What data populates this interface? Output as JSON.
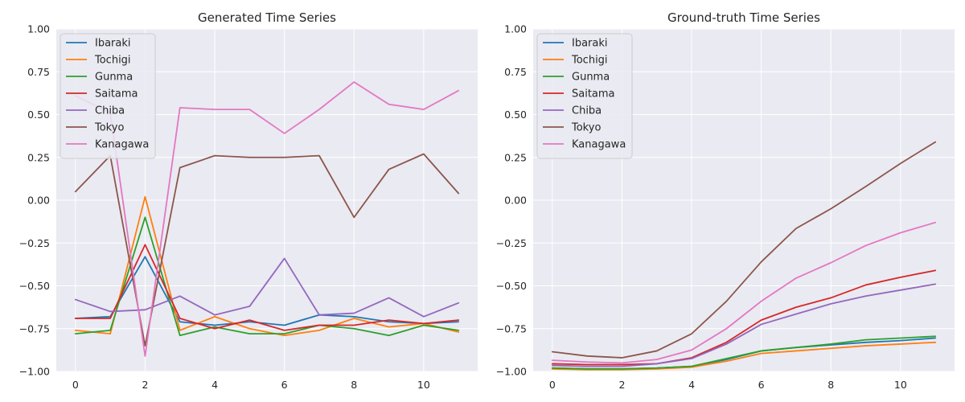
{
  "chart_data": [
    {
      "type": "line",
      "title": "Generated Time Series",
      "xlabel": "",
      "ylabel": "",
      "x": [
        0,
        1,
        2,
        3,
        4,
        5,
        6,
        7,
        8,
        9,
        10,
        11
      ],
      "xlim": [
        -0.55,
        11.55
      ],
      "ylim": [
        -1.0,
        1.0
      ],
      "xticks": [
        0,
        2,
        4,
        6,
        8,
        10
      ],
      "yticks": [
        -1.0,
        -0.75,
        -0.5,
        -0.25,
        0.0,
        0.25,
        0.5,
        0.75,
        1.0
      ],
      "ytick_labels": [
        "−1.00",
        "−0.75",
        "−0.50",
        "−0.25",
        "0.00",
        "0.25",
        "0.50",
        "0.75",
        "1.00"
      ],
      "grid": true,
      "legend_position": "upper-left",
      "series": [
        {
          "name": "Ibaraki",
          "color": "#1f77b4",
          "values": [
            -0.69,
            -0.68,
            -0.33,
            -0.71,
            -0.73,
            -0.71,
            -0.73,
            -0.67,
            -0.68,
            -0.71,
            -0.72,
            -0.71
          ]
        },
        {
          "name": "Tochigi",
          "color": "#ff7f0e",
          "values": [
            -0.76,
            -0.78,
            0.02,
            -0.76,
            -0.68,
            -0.75,
            -0.79,
            -0.76,
            -0.69,
            -0.74,
            -0.72,
            -0.77
          ]
        },
        {
          "name": "Gunma",
          "color": "#2ca02c",
          "values": [
            -0.78,
            -0.76,
            -0.1,
            -0.79,
            -0.74,
            -0.78,
            -0.78,
            -0.73,
            -0.75,
            -0.79,
            -0.73,
            -0.76
          ]
        },
        {
          "name": "Saitama",
          "color": "#d62728",
          "values": [
            -0.69,
            -0.69,
            -0.26,
            -0.69,
            -0.75,
            -0.7,
            -0.76,
            -0.73,
            -0.73,
            -0.7,
            -0.72,
            -0.7
          ]
        },
        {
          "name": "Chiba",
          "color": "#9467bd",
          "values": [
            -0.58,
            -0.65,
            -0.64,
            -0.56,
            -0.67,
            -0.62,
            -0.34,
            -0.67,
            -0.66,
            -0.57,
            -0.68,
            -0.6
          ]
        },
        {
          "name": "Tokyo",
          "color": "#8c564b",
          "values": [
            0.05,
            0.26,
            -0.85,
            0.19,
            0.26,
            0.25,
            0.25,
            0.26,
            -0.1,
            0.18,
            0.27,
            0.04
          ]
        },
        {
          "name": "Kanagawa",
          "color": "#e377c2",
          "values": [
            0.61,
            0.51,
            -0.91,
            0.54,
            0.53,
            0.53,
            0.39,
            0.53,
            0.69,
            0.56,
            0.53,
            0.64
          ]
        }
      ]
    },
    {
      "type": "line",
      "title": "Ground-truth Time Series",
      "xlabel": "",
      "ylabel": "",
      "x": [
        0,
        1,
        2,
        3,
        4,
        5,
        6,
        7,
        8,
        9,
        10,
        11
      ],
      "xlim": [
        -0.55,
        11.55
      ],
      "ylim": [
        -1.0,
        1.0
      ],
      "xticks": [
        0,
        2,
        4,
        6,
        8,
        10
      ],
      "yticks": [
        -1.0,
        -0.75,
        -0.5,
        -0.25,
        0.0,
        0.25,
        0.5,
        0.75,
        1.0
      ],
      "ytick_labels": [
        "−1.00",
        "−0.75",
        "−0.50",
        "−0.25",
        "0.00",
        "0.25",
        "0.50",
        "0.75",
        "1.00"
      ],
      "grid": true,
      "legend_position": "upper-left",
      "series": [
        {
          "name": "Ibaraki",
          "color": "#1f77b4",
          "values": [
            -0.98,
            -0.985,
            -0.985,
            -0.98,
            -0.97,
            -0.93,
            -0.88,
            -0.86,
            -0.845,
            -0.83,
            -0.82,
            -0.805
          ]
        },
        {
          "name": "Tochigi",
          "color": "#ff7f0e",
          "values": [
            -0.985,
            -0.99,
            -0.99,
            -0.985,
            -0.975,
            -0.94,
            -0.895,
            -0.88,
            -0.865,
            -0.85,
            -0.84,
            -0.83
          ]
        },
        {
          "name": "Gunma",
          "color": "#2ca02c",
          "values": [
            -0.98,
            -0.985,
            -0.985,
            -0.98,
            -0.97,
            -0.925,
            -0.88,
            -0.86,
            -0.84,
            -0.815,
            -0.805,
            -0.795
          ]
        },
        {
          "name": "Saitama",
          "color": "#d62728",
          "values": [
            -0.955,
            -0.96,
            -0.96,
            -0.955,
            -0.92,
            -0.83,
            -0.7,
            -0.625,
            -0.57,
            -0.495,
            -0.45,
            -0.41
          ]
        },
        {
          "name": "Chiba",
          "color": "#9467bd",
          "values": [
            -0.965,
            -0.97,
            -0.97,
            -0.955,
            -0.925,
            -0.84,
            -0.725,
            -0.665,
            -0.605,
            -0.56,
            -0.525,
            -0.49
          ]
        },
        {
          "name": "Tokyo",
          "color": "#8c564b",
          "values": [
            -0.885,
            -0.91,
            -0.92,
            -0.88,
            -0.78,
            -0.59,
            -0.36,
            -0.165,
            -0.05,
            0.08,
            0.215,
            0.34
          ]
        },
        {
          "name": "Kanagawa",
          "color": "#e377c2",
          "values": [
            -0.935,
            -0.945,
            -0.95,
            -0.93,
            -0.875,
            -0.75,
            -0.59,
            -0.455,
            -0.365,
            -0.265,
            -0.19,
            -0.13
          ]
        }
      ]
    }
  ]
}
